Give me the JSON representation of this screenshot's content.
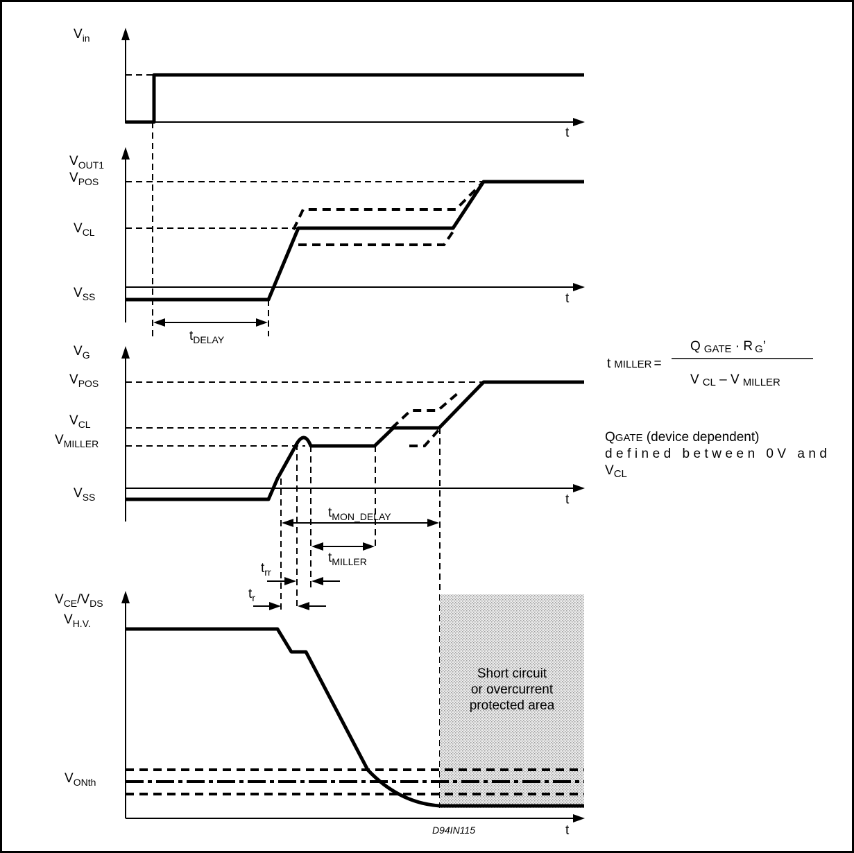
{
  "panels": {
    "vin": {
      "label": "V",
      "label_sub": "in",
      "t": "t"
    },
    "vout": {
      "label": "V",
      "label_sub": "OUT1",
      "vpos": "V",
      "vpos_sub": "POS",
      "vcl": "V",
      "vcl_sub": "CL",
      "vss": "V",
      "vss_sub": "SS",
      "t": "t",
      "tdelay": "t",
      "tdelay_sub": "DELAY"
    },
    "vg": {
      "label": "V",
      "label_sub": "G",
      "vpos": "V",
      "vpos_sub": "POS",
      "vcl": "V",
      "vcl_sub": "CL",
      "vmiller": "V",
      "vmiller_sub": "MILLER",
      "vss": "V",
      "vss_sub": "SS",
      "t": "t",
      "tmon": "t",
      "tmon_sub": "MON_DELAY",
      "tmiller": "t",
      "tmiller_sub": "MILLER",
      "trr": "t",
      "trr_sub": "rr",
      "tr": "t",
      "tr_sub": "r"
    },
    "vce": {
      "label_a": "V",
      "label_a_sub": "CE",
      "label_slash": "/V",
      "label_b_sub": "DS",
      "vhv": "V",
      "vhv_sub": "H.V.",
      "vonth": "V",
      "vonth_sub": "ONth",
      "t": "t",
      "area_line1": "Short circuit",
      "area_line2": "or overcurrent",
      "area_line3": "protected area",
      "drawing_code": "D94IN115"
    }
  },
  "formula": {
    "lhs": "t",
    "lhs_sub": "MILLER",
    "eq": "=",
    "num_q": "Q",
    "num_q_sub": "GATE",
    "num_dot": " · R",
    "num_r_sub": "G",
    "num_prime": "’",
    "den_v1": "V",
    "den_v1_sub": "CL",
    "den_minus": " – V",
    "den_v2_sub": "MILLER"
  },
  "note": {
    "q": "Q",
    "q_sub": "GATE",
    "line1_rest": " (device dependent)",
    "line2": "defined between 0V and",
    "line3": "V",
    "line3_sub": "CL"
  }
}
